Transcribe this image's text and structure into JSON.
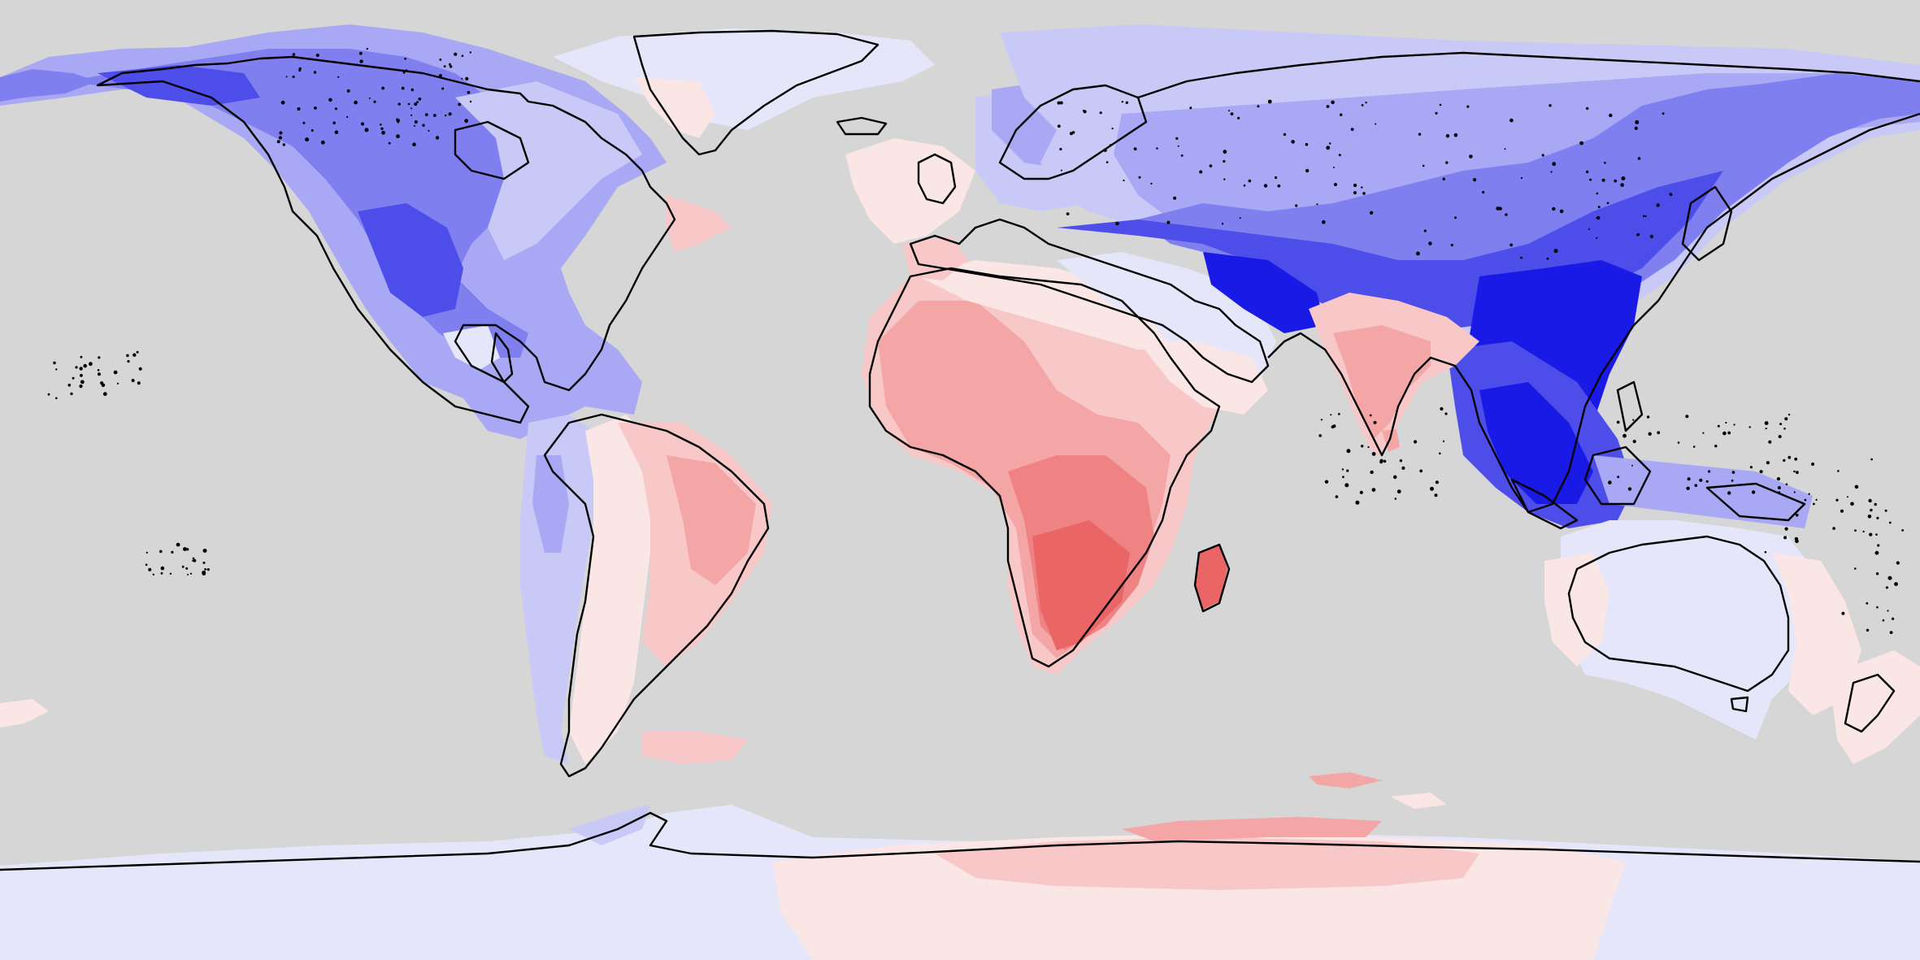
{
  "map": {
    "projection": "equirectangular",
    "ocean_color": "#d6d6d6",
    "coastline_color": "#000000",
    "palette": {
      "blue_5": "#1a1ae6",
      "blue_4": "#4d4dea",
      "blue_3": "#7f7ff0",
      "blue_2": "#a8a8f4",
      "blue_1": "#c9c9f8",
      "blue_0": "#e6e6fb",
      "red_0": "#fbe6e6",
      "red_1": "#f8c7c7",
      "red_2": "#f4a5a5",
      "red_3": "#ef8282",
      "red_4": "#ea6666"
    }
  }
}
